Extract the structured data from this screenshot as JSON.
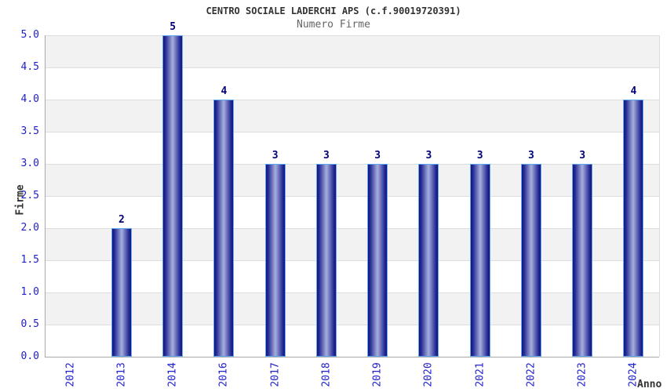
{
  "header": {
    "title": "CENTRO SOCIALE LADERCHI APS (c.f.90019720391)",
    "subtitle": "Numero Firme"
  },
  "chart_data": {
    "type": "bar",
    "title": "CENTRO SOCIALE LADERCHI APS (c.f.90019720391)",
    "subtitle": "Numero Firme",
    "categories": [
      "2012",
      "2013",
      "2014",
      "2016",
      "2017",
      "2018",
      "2019",
      "2020",
      "2021",
      "2022",
      "2023",
      "2024"
    ],
    "values": [
      0,
      2,
      5,
      4,
      3,
      3,
      3,
      3,
      3,
      3,
      3,
      4
    ],
    "xlabel": "Anno",
    "ylabel": "Firme",
    "ylim": [
      0,
      5
    ],
    "ytick_step": 0.5,
    "ytick_labels": [
      "0.0",
      "0.5",
      "1.0",
      "1.5",
      "2.0",
      "2.5",
      "3.0",
      "3.5",
      "4.0",
      "4.5",
      "5.0"
    ],
    "grid": true,
    "legend": "none",
    "band_fill_even": "#f2f2f2",
    "band_fill_odd": "#ffffff"
  },
  "colors": {
    "title": "#333333",
    "subtitle": "#666666",
    "tick": "#2020cc",
    "grid": "#dddddd",
    "axis": "#aaaaaa",
    "bar_border": "#5fa8f0",
    "bar_dark": "#14147a",
    "bar_mid": "#262c96",
    "bar_light": "#a7afdd",
    "value_label": "#000078",
    "band_gray": "#f2f2f2"
  }
}
